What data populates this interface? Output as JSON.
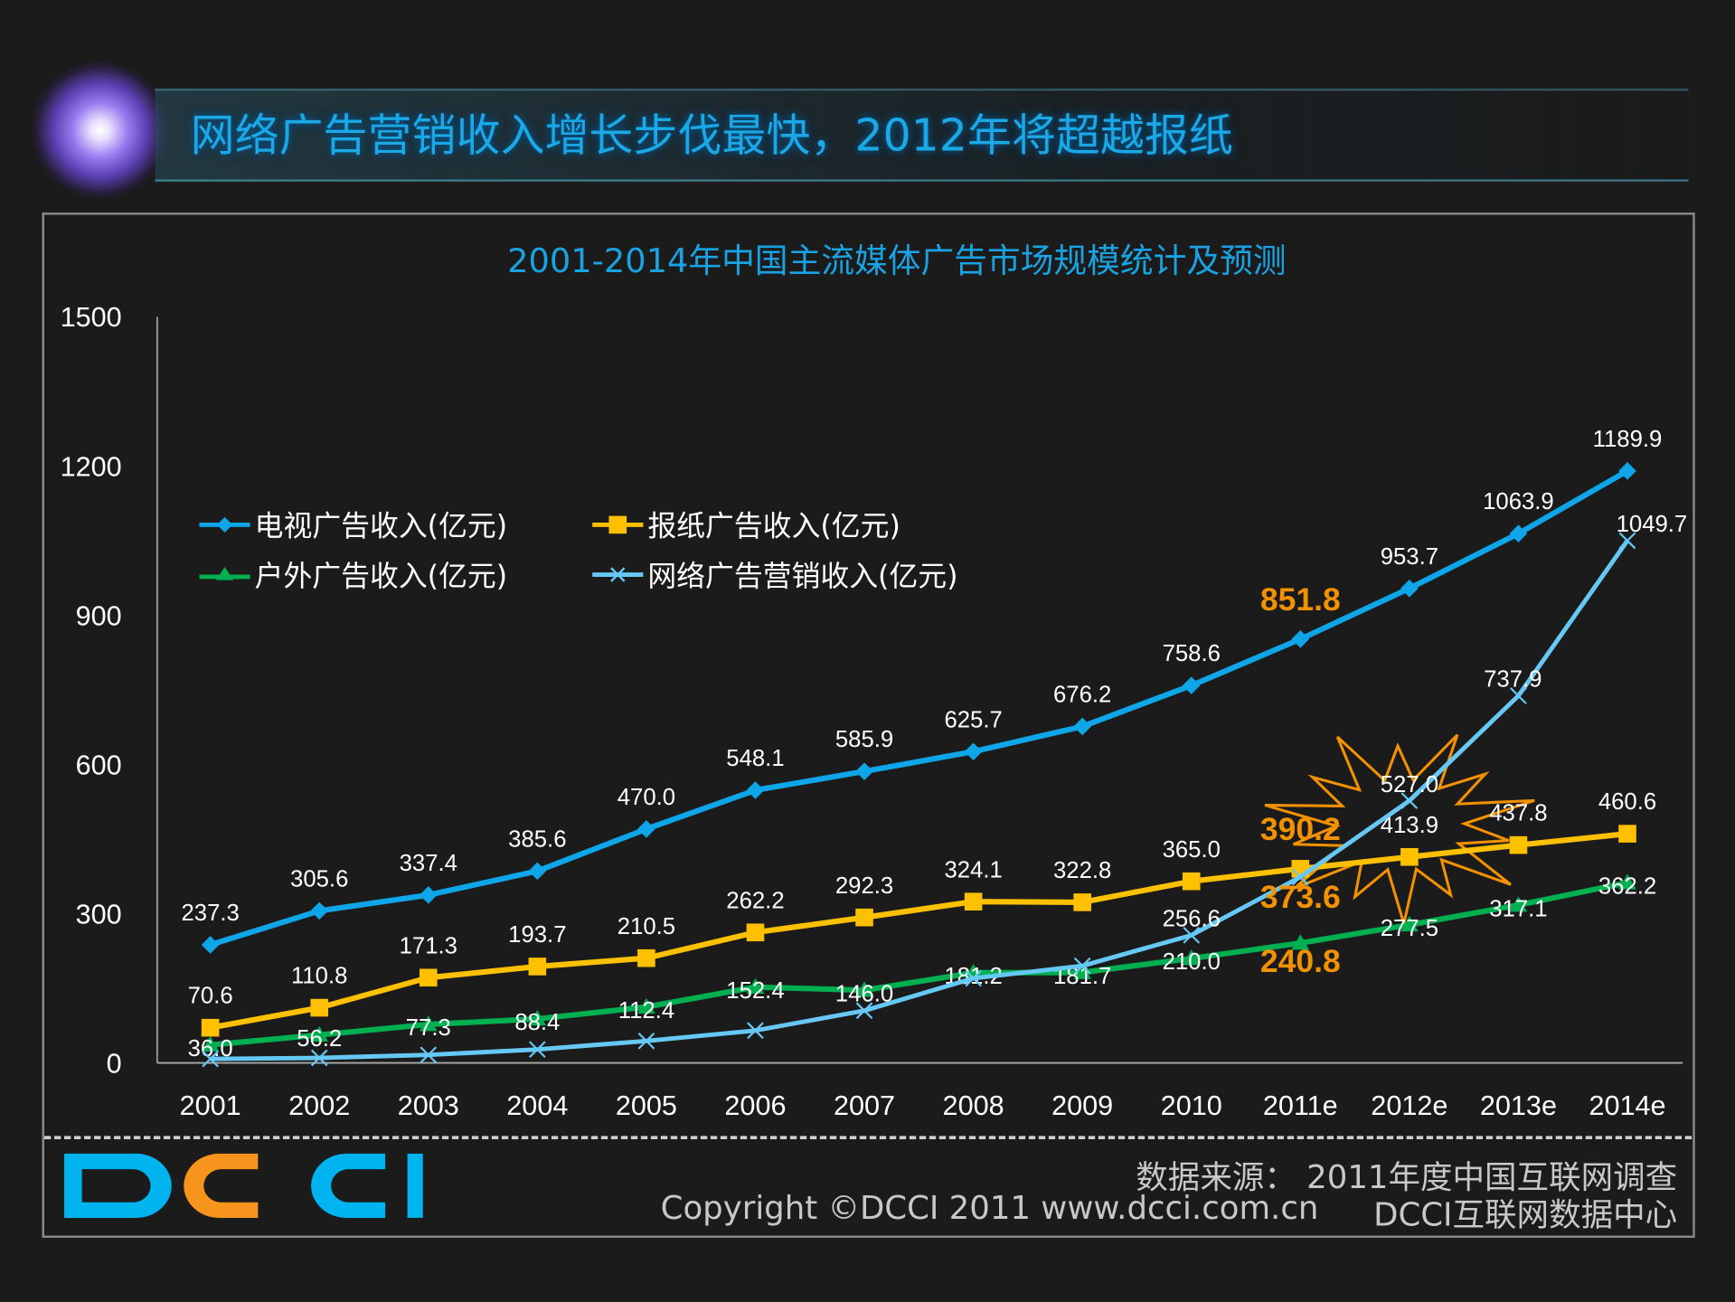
{
  "header": {
    "title": "网络广告营销收入增长步伐最快，2012年将超越报纸"
  },
  "chart_data": {
    "type": "line",
    "title": "2001-2014年中国主流媒体广告市场规模统计及预测",
    "categories": [
      "2001",
      "2002",
      "2003",
      "2004",
      "2005",
      "2006",
      "2007",
      "2008",
      "2009",
      "2010",
      "2011e",
      "2012e",
      "2013e",
      "2014e"
    ],
    "ylim": [
      0,
      1500
    ],
    "yticks": [
      "0",
      "300",
      "600",
      "900",
      "1200",
      "1500"
    ],
    "grid": false,
    "legend_position": "top-left",
    "series": [
      {
        "name": "电视广告收入(亿元)",
        "color": "#0ea5e9",
        "marker": "diamond",
        "values": [
          237.3,
          305.6,
          337.4,
          385.6,
          470.0,
          548.1,
          585.9,
          625.7,
          676.2,
          758.6,
          851.8,
          953.7,
          1063.9,
          1189.9
        ],
        "labels": [
          "237.3",
          "305.6",
          "337.4",
          "385.6",
          "470.0",
          "548.1",
          "585.9",
          "625.7",
          "676.2",
          "758.6",
          "851.8",
          "953.7",
          "1063.9",
          "1189.9"
        ]
      },
      {
        "name": "报纸广告收入(亿元)",
        "color": "#ffc000",
        "marker": "square",
        "values": [
          70.6,
          110.8,
          171.3,
          193.7,
          210.5,
          262.2,
          292.3,
          324.1,
          322.8,
          365.0,
          390.2,
          413.9,
          437.8,
          460.6
        ],
        "labels": [
          "70.6",
          "110.8",
          "171.3",
          "193.7",
          "210.5",
          "262.2",
          "292.3",
          "324.1",
          "322.8",
          "365.0",
          "390.2",
          "413.9",
          "437.8",
          "460.6"
        ]
      },
      {
        "name": "户外广告收入(亿元)",
        "color": "#00b050",
        "marker": "triangle",
        "values": [
          36.0,
          56.2,
          77.3,
          88.4,
          112.4,
          152.4,
          146.0,
          181.2,
          181.7,
          210.0,
          240.8,
          277.5,
          317.1,
          362.2
        ],
        "labels": [
          "36.0",
          "56.2",
          "77.3",
          "88.4",
          "112.4",
          "152.4",
          "146.0",
          "181.2",
          "181.7",
          "210.0",
          "240.8",
          "277.5",
          "317.1",
          "362.2"
        ]
      },
      {
        "name": "网络广告营销收入(亿元)",
        "color": "#66c8f5",
        "marker": "x",
        "values": [
          8,
          10,
          16,
          27,
          44,
          65,
          105,
          170,
          195,
          256.6,
          373.6,
          527.0,
          737.9,
          1049.7
        ],
        "labels": [
          "",
          "",
          "",
          "",
          "",
          "",
          "",
          "",
          "",
          "256.6",
          "373.6",
          "527.0",
          "737.9",
          "1049.7"
        ]
      }
    ],
    "highlight": {
      "category": "2011e",
      "color": "#f39200"
    }
  },
  "footer": {
    "logo": "DCCI",
    "logo_colors": [
      "#00b4f0",
      "#f7941d",
      "#00b4f0",
      "#00b4f0"
    ],
    "source": "数据来源： 2011年度中国互联网调查",
    "copyright": "Copyright ©DCCI 2011 www.dcci.com.cn",
    "center": "DCCI互联网数据中心"
  }
}
